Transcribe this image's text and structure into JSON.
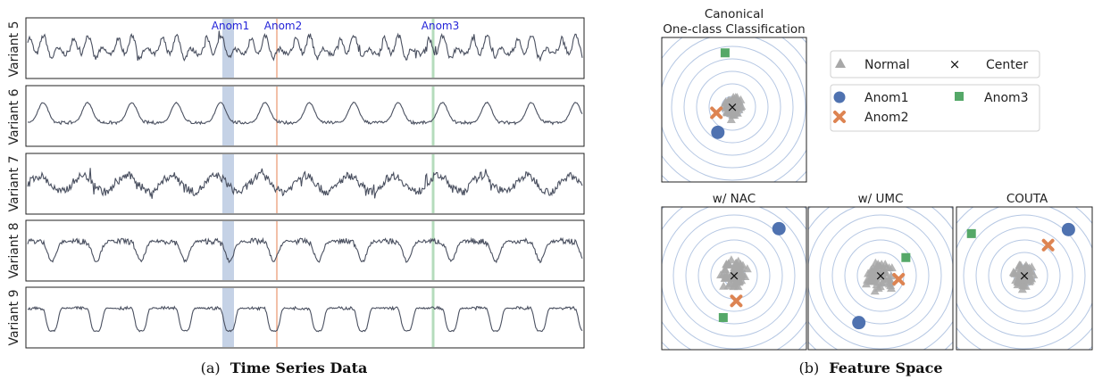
{
  "chart_data": [
    {
      "type": "line",
      "caption_prefix": "(a)",
      "caption_title": "Time Series Data",
      "series": [
        {
          "name": "Variant 5",
          "shape": "spiky-periodic"
        },
        {
          "name": "Variant 6",
          "shape": "smooth-humps"
        },
        {
          "name": "Variant 7",
          "shape": "noisy-periodic"
        },
        {
          "name": "Variant 8",
          "shape": "troughs"
        },
        {
          "name": "Variant 9",
          "shape": "u-troughs"
        }
      ],
      "annotations": [
        {
          "label": "Anom1",
          "kind": "band",
          "color": "#b6c7e0"
        },
        {
          "label": "Anom2",
          "kind": "line",
          "color": "#f2c0a8"
        },
        {
          "label": "Anom3",
          "kind": "line",
          "color": "#b5dcbc"
        }
      ],
      "colors": {
        "series": "#4a5060",
        "annotation_text": "#2424d8"
      }
    },
    {
      "type": "scatter",
      "caption_prefix": "(b)",
      "caption_title": "Feature Space",
      "legend": {
        "normal": "Normal",
        "center": "Center",
        "anom1": "Anom1",
        "anom2": "Anom2",
        "anom3": "Anom3"
      },
      "colors": {
        "normal": "#a8a8a8",
        "center": "#111111",
        "anom1": "#4f72b0",
        "anom2": "#dd8452",
        "anom3": "#55a868",
        "rings": "#b5c7e3"
      },
      "panels": [
        {
          "title_line1": "Canonical",
          "title_line2": "One-class Classification",
          "anom1": [
            -0.2,
            -0.35
          ],
          "anom2": [
            -0.22,
            -0.08
          ],
          "anom3": [
            -0.1,
            0.75
          ],
          "spread": 0.14
        },
        {
          "title_line1": "w/ NAC",
          "title_line2": "",
          "anom1": [
            0.62,
            0.65
          ],
          "anom2": [
            0.03,
            -0.35
          ],
          "anom3": [
            -0.15,
            -0.58
          ],
          "spread": 0.2
        },
        {
          "title_line1": "w/ UMC",
          "title_line2": "",
          "anom1": [
            -0.3,
            -0.65
          ],
          "anom2": [
            0.25,
            -0.05
          ],
          "anom3": [
            0.35,
            0.25
          ],
          "spread": 0.22
        },
        {
          "title_line1": "COUTA",
          "title_line2": "",
          "anom1": [
            0.65,
            0.68
          ],
          "anom2": [
            0.35,
            0.45
          ],
          "anom3": [
            -0.78,
            0.62
          ],
          "spread": 0.18
        }
      ]
    }
  ]
}
